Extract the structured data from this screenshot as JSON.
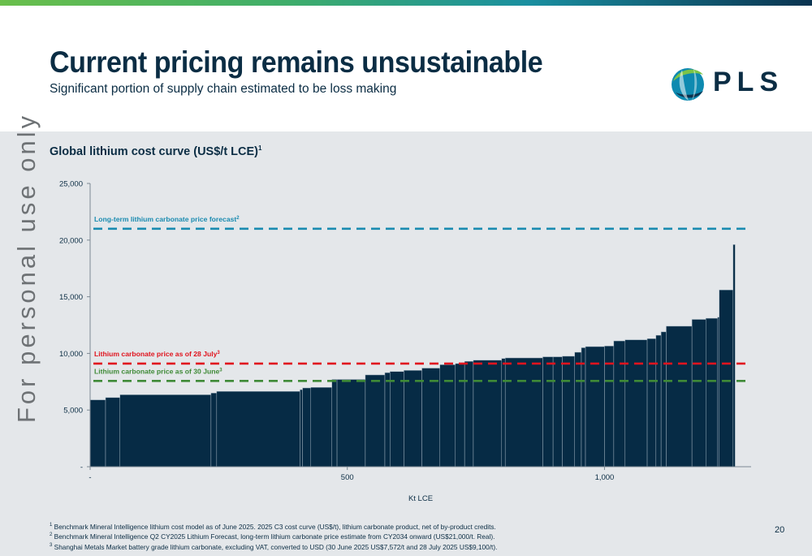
{
  "slide": {
    "title": "Current pricing remains unsustainable",
    "subtitle": "Significant portion of supply chain estimated to be loss making",
    "logo_text": "PLS",
    "watermark": "For personal use only",
    "page_number": "20"
  },
  "colors": {
    "navy": "#062b45",
    "teal_forecast": "#1a8bb0",
    "red_price": "#e0141e",
    "green_price": "#3f8a37",
    "panel_bg": "#e4e7ea"
  },
  "footnotes": [
    {
      "num": "1",
      "text": "Benchmark Mineral Intelligence lithium cost model as of June 2025. 2025 C3 cost curve (US$/t), lithium carbonate product, net of by-product credits."
    },
    {
      "num": "2",
      "text": "Benchmark Mineral Intelligence Q2 CY2025 Lithium Forecast, long-term lithium carbonate price estimate from CY2034 onward (US$21,000/t. Real)."
    },
    {
      "num": "3",
      "text": "Shanghai Metals Market battery grade lithium carbonate, excluding VAT, converted to USD (30 June 2025 US$7,572/t and 28 July 2025 US$9,100/t)."
    }
  ],
  "chart_data": {
    "type": "bar",
    "title": "Global lithium cost curve (US$/t LCE)",
    "title_sup": "1",
    "xlabel": "Kt LCE",
    "ylabel": "",
    "xlim": [
      0,
      1285
    ],
    "ylim": [
      0,
      25000
    ],
    "x_ticks": [
      {
        "value": 0,
        "label": "-"
      },
      {
        "value": 500,
        "label": "500"
      },
      {
        "value": 1000,
        "label": "1,000"
      }
    ],
    "y_ticks": [
      {
        "value": 0,
        "label": "-"
      },
      {
        "value": 5000,
        "label": "5,000"
      },
      {
        "value": 10000,
        "label": "10,000"
      },
      {
        "value": 15000,
        "label": "15,000"
      },
      {
        "value": 20000,
        "label": "20,000"
      },
      {
        "value": 25000,
        "label": "25,000"
      }
    ],
    "bars": [
      {
        "x0": 0,
        "x1": 30,
        "y": 5900
      },
      {
        "x0": 30,
        "x1": 58,
        "y": 6100
      },
      {
        "x0": 58,
        "x1": 235,
        "y": 6350
      },
      {
        "x0": 235,
        "x1": 246,
        "y": 6500
      },
      {
        "x0": 246,
        "x1": 408,
        "y": 6650
      },
      {
        "x0": 408,
        "x1": 413,
        "y": 6800
      },
      {
        "x0": 413,
        "x1": 429,
        "y": 6950
      },
      {
        "x0": 429,
        "x1": 470,
        "y": 7000
      },
      {
        "x0": 470,
        "x1": 480,
        "y": 7700
      },
      {
        "x0": 480,
        "x1": 535,
        "y": 7700
      },
      {
        "x0": 535,
        "x1": 573,
        "y": 8100
      },
      {
        "x0": 573,
        "x1": 583,
        "y": 8300
      },
      {
        "x0": 583,
        "x1": 610,
        "y": 8400
      },
      {
        "x0": 610,
        "x1": 645,
        "y": 8500
      },
      {
        "x0": 645,
        "x1": 680,
        "y": 8700
      },
      {
        "x0": 680,
        "x1": 710,
        "y": 9000
      },
      {
        "x0": 710,
        "x1": 728,
        "y": 9100
      },
      {
        "x0": 728,
        "x1": 745,
        "y": 9300
      },
      {
        "x0": 745,
        "x1": 800,
        "y": 9400
      },
      {
        "x0": 800,
        "x1": 807,
        "y": 9550
      },
      {
        "x0": 807,
        "x1": 880,
        "y": 9600
      },
      {
        "x0": 880,
        "x1": 900,
        "y": 9700
      },
      {
        "x0": 900,
        "x1": 918,
        "y": 9700
      },
      {
        "x0": 918,
        "x1": 942,
        "y": 9750
      },
      {
        "x0": 942,
        "x1": 955,
        "y": 10100
      },
      {
        "x0": 955,
        "x1": 963,
        "y": 10500
      },
      {
        "x0": 963,
        "x1": 1000,
        "y": 10600
      },
      {
        "x0": 1000,
        "x1": 1018,
        "y": 10650
      },
      {
        "x0": 1018,
        "x1": 1040,
        "y": 11100
      },
      {
        "x0": 1040,
        "x1": 1083,
        "y": 11200
      },
      {
        "x0": 1083,
        "x1": 1100,
        "y": 11300
      },
      {
        "x0": 1100,
        "x1": 1110,
        "y": 11600
      },
      {
        "x0": 1110,
        "x1": 1120,
        "y": 11900
      },
      {
        "x0": 1120,
        "x1": 1170,
        "y": 12400
      },
      {
        "x0": 1170,
        "x1": 1197,
        "y": 13000
      },
      {
        "x0": 1197,
        "x1": 1220,
        "y": 13100
      },
      {
        "x0": 1220,
        "x1": 1223,
        "y": 13200
      },
      {
        "x0": 1223,
        "x1": 1250,
        "y": 15600
      },
      {
        "x0": 1250,
        "x1": 1254,
        "y": 19600
      }
    ],
    "reference_lines": [
      {
        "label": "Long-term lithium carbonate price forecast",
        "sup": "2",
        "value": 21000,
        "color": "#1a8bb0"
      },
      {
        "label": "Lithium carbonate price as of 28 July",
        "sup": "3",
        "value": 9100,
        "color": "#e0141e"
      },
      {
        "label": "Lithium carbonate price as of 30 June",
        "sup": "3",
        "value": 7572,
        "color": "#3f8a37"
      }
    ]
  }
}
